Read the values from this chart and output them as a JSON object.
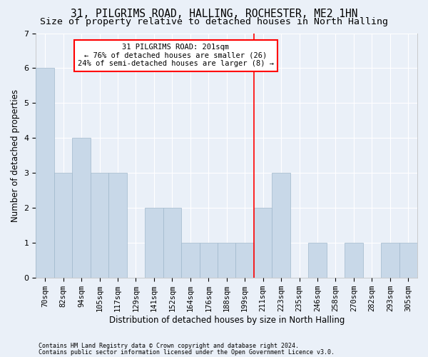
{
  "title1": "31, PILGRIMS ROAD, HALLING, ROCHESTER, ME2 1HN",
  "title2": "Size of property relative to detached houses in North Halling",
  "xlabel": "Distribution of detached houses by size in North Halling",
  "ylabel": "Number of detached properties",
  "footer1": "Contains HM Land Registry data © Crown copyright and database right 2024.",
  "footer2": "Contains public sector information licensed under the Open Government Licence v3.0.",
  "categories": [
    "70sqm",
    "82sqm",
    "94sqm",
    "105sqm",
    "117sqm",
    "129sqm",
    "141sqm",
    "152sqm",
    "164sqm",
    "176sqm",
    "188sqm",
    "199sqm",
    "211sqm",
    "223sqm",
    "235sqm",
    "246sqm",
    "258sqm",
    "270sqm",
    "282sqm",
    "293sqm",
    "305sqm"
  ],
  "values": [
    6,
    3,
    4,
    3,
    3,
    0,
    2,
    2,
    1,
    1,
    1,
    1,
    2,
    3,
    0,
    1,
    0,
    1,
    0,
    1,
    1
  ],
  "bar_color": "#c8d8e8",
  "bar_edge_color": "#a0b8cc",
  "vline_color": "red",
  "annotation_title": "31 PILGRIMS ROAD: 201sqm",
  "annotation_line1": "← 76% of detached houses are smaller (26)",
  "annotation_line2": "24% of semi-detached houses are larger (8) →",
  "ylim": [
    0,
    7
  ],
  "yticks": [
    0,
    1,
    2,
    3,
    4,
    5,
    6,
    7
  ],
  "background_color": "#eaf0f8",
  "grid_color": "#ffffff",
  "title_fontsize": 10.5,
  "subtitle_fontsize": 9.5,
  "axis_label_fontsize": 8.5,
  "tick_fontsize": 7.5,
  "footer_fontsize": 6.0
}
